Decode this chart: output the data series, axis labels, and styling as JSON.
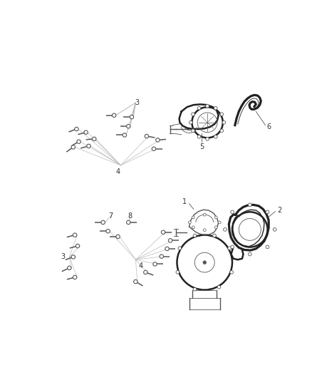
{
  "bg_color": "#ffffff",
  "line_color": "#555555",
  "label_color": "#333333",
  "fig_width": 4.38,
  "fig_height": 5.33,
  "dpi": 100
}
